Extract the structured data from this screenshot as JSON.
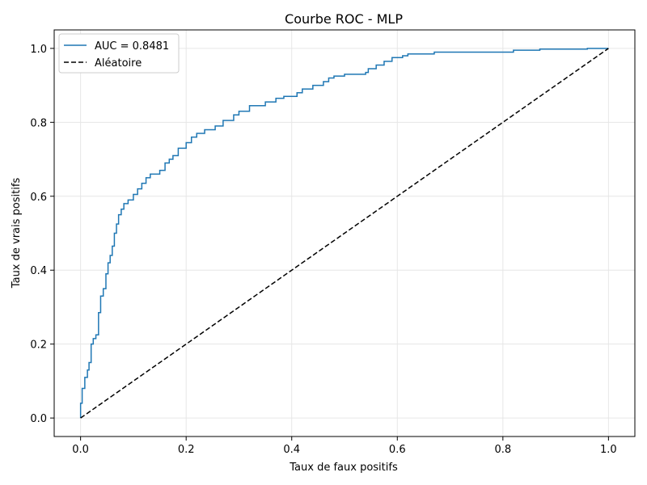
{
  "chart_data": {
    "type": "line",
    "title": "Courbe ROC - MLP",
    "xlabel": "Taux de faux positifs",
    "ylabel": "Taux de vrais positifs",
    "xlim": [
      -0.05,
      1.05
    ],
    "ylim": [
      -0.05,
      1.05
    ],
    "xticks": [
      0.0,
      0.2,
      0.4,
      0.6,
      0.8,
      1.0
    ],
    "yticks": [
      0.0,
      0.2,
      0.4,
      0.6,
      0.8,
      1.0
    ],
    "xtick_labels": [
      "0.0",
      "0.2",
      "0.4",
      "0.6",
      "0.8",
      "1.0"
    ],
    "ytick_labels": [
      "0.0",
      "0.2",
      "0.4",
      "0.6",
      "0.8",
      "1.0"
    ],
    "grid": true,
    "legend_position": "top-left",
    "series": [
      {
        "name": "AUC = 0.8481",
        "color": "#1f77b4",
        "style": "solid",
        "points": [
          [
            0.0,
            0.0
          ],
          [
            0.0,
            0.04
          ],
          [
            0.003,
            0.04
          ],
          [
            0.003,
            0.08
          ],
          [
            0.008,
            0.08
          ],
          [
            0.008,
            0.11
          ],
          [
            0.013,
            0.11
          ],
          [
            0.013,
            0.13
          ],
          [
            0.016,
            0.13
          ],
          [
            0.016,
            0.15
          ],
          [
            0.02,
            0.15
          ],
          [
            0.02,
            0.2
          ],
          [
            0.024,
            0.2
          ],
          [
            0.024,
            0.215
          ],
          [
            0.029,
            0.215
          ],
          [
            0.029,
            0.225
          ],
          [
            0.034,
            0.225
          ],
          [
            0.034,
            0.285
          ],
          [
            0.038,
            0.285
          ],
          [
            0.038,
            0.33
          ],
          [
            0.043,
            0.33
          ],
          [
            0.043,
            0.35
          ],
          [
            0.048,
            0.35
          ],
          [
            0.048,
            0.39
          ],
          [
            0.052,
            0.39
          ],
          [
            0.052,
            0.42
          ],
          [
            0.056,
            0.42
          ],
          [
            0.056,
            0.44
          ],
          [
            0.06,
            0.44
          ],
          [
            0.06,
            0.465
          ],
          [
            0.064,
            0.465
          ],
          [
            0.064,
            0.5
          ],
          [
            0.068,
            0.5
          ],
          [
            0.068,
            0.525
          ],
          [
            0.072,
            0.525
          ],
          [
            0.072,
            0.55
          ],
          [
            0.077,
            0.55
          ],
          [
            0.077,
            0.565
          ],
          [
            0.082,
            0.565
          ],
          [
            0.082,
            0.58
          ],
          [
            0.09,
            0.58
          ],
          [
            0.09,
            0.59
          ],
          [
            0.1,
            0.59
          ],
          [
            0.1,
            0.605
          ],
          [
            0.108,
            0.605
          ],
          [
            0.108,
            0.62
          ],
          [
            0.116,
            0.62
          ],
          [
            0.116,
            0.635
          ],
          [
            0.124,
            0.635
          ],
          [
            0.124,
            0.65
          ],
          [
            0.132,
            0.65
          ],
          [
            0.132,
            0.66
          ],
          [
            0.15,
            0.66
          ],
          [
            0.15,
            0.67
          ],
          [
            0.16,
            0.67
          ],
          [
            0.16,
            0.69
          ],
          [
            0.168,
            0.69
          ],
          [
            0.168,
            0.7
          ],
          [
            0.175,
            0.7
          ],
          [
            0.175,
            0.71
          ],
          [
            0.185,
            0.71
          ],
          [
            0.185,
            0.73
          ],
          [
            0.2,
            0.73
          ],
          [
            0.2,
            0.745
          ],
          [
            0.21,
            0.745
          ],
          [
            0.21,
            0.76
          ],
          [
            0.22,
            0.76
          ],
          [
            0.22,
            0.77
          ],
          [
            0.235,
            0.77
          ],
          [
            0.235,
            0.78
          ],
          [
            0.255,
            0.78
          ],
          [
            0.255,
            0.79
          ],
          [
            0.27,
            0.79
          ],
          [
            0.27,
            0.805
          ],
          [
            0.29,
            0.805
          ],
          [
            0.29,
            0.82
          ],
          [
            0.3,
            0.82
          ],
          [
            0.3,
            0.83
          ],
          [
            0.32,
            0.83
          ],
          [
            0.32,
            0.845
          ],
          [
            0.35,
            0.845
          ],
          [
            0.35,
            0.855
          ],
          [
            0.37,
            0.855
          ],
          [
            0.37,
            0.865
          ],
          [
            0.385,
            0.865
          ],
          [
            0.385,
            0.87
          ],
          [
            0.41,
            0.87
          ],
          [
            0.41,
            0.88
          ],
          [
            0.42,
            0.88
          ],
          [
            0.42,
            0.89
          ],
          [
            0.44,
            0.89
          ],
          [
            0.44,
            0.9
          ],
          [
            0.46,
            0.9
          ],
          [
            0.46,
            0.91
          ],
          [
            0.47,
            0.91
          ],
          [
            0.47,
            0.92
          ],
          [
            0.48,
            0.92
          ],
          [
            0.48,
            0.925
          ],
          [
            0.5,
            0.925
          ],
          [
            0.5,
            0.93
          ],
          [
            0.54,
            0.93
          ],
          [
            0.54,
            0.935
          ],
          [
            0.545,
            0.935
          ],
          [
            0.545,
            0.945
          ],
          [
            0.56,
            0.945
          ],
          [
            0.56,
            0.955
          ],
          [
            0.575,
            0.955
          ],
          [
            0.575,
            0.965
          ],
          [
            0.59,
            0.965
          ],
          [
            0.59,
            0.975
          ],
          [
            0.61,
            0.975
          ],
          [
            0.61,
            0.98
          ],
          [
            0.62,
            0.98
          ],
          [
            0.62,
            0.985
          ],
          [
            0.67,
            0.985
          ],
          [
            0.67,
            0.99
          ],
          [
            0.82,
            0.99
          ],
          [
            0.82,
            0.995
          ],
          [
            0.87,
            0.995
          ],
          [
            0.87,
            0.998
          ],
          [
            0.96,
            0.998
          ],
          [
            0.96,
            1.0
          ],
          [
            1.0,
            1.0
          ]
        ]
      },
      {
        "name": "Aléatoire",
        "color": "#000000",
        "style": "dashed",
        "points": [
          [
            0.0,
            0.0
          ],
          [
            1.0,
            1.0
          ]
        ]
      }
    ]
  }
}
